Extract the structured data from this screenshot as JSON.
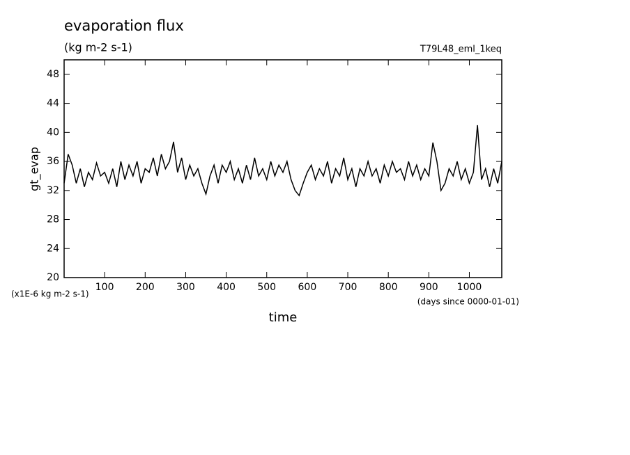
{
  "chart_data": {
    "type": "line",
    "title": "evaporation flux",
    "subtitle": "(kg m-2 s-1)",
    "run_label": "T79L48_eml_1keq",
    "y_label": "gt_evap",
    "x_label": "time",
    "y_unit": "(x1E-6 kg m-2 s-1)",
    "x_unit": "(days since 0000-01-01)",
    "xlim": [
      0,
      1080
    ],
    "ylim": [
      20,
      50
    ],
    "xticks": [
      100,
      200,
      300,
      400,
      500,
      600,
      700,
      800,
      900,
      1000
    ],
    "yticks": [
      20,
      24,
      28,
      32,
      36,
      40,
      44,
      48
    ],
    "x": [
      0,
      10,
      20,
      30,
      40,
      50,
      60,
      70,
      80,
      90,
      100,
      110,
      120,
      130,
      140,
      150,
      160,
      170,
      180,
      190,
      200,
      210,
      220,
      230,
      240,
      250,
      260,
      270,
      280,
      290,
      300,
      310,
      320,
      330,
      340,
      350,
      360,
      370,
      380,
      390,
      400,
      410,
      420,
      430,
      440,
      450,
      460,
      470,
      480,
      490,
      500,
      510,
      520,
      530,
      540,
      550,
      560,
      570,
      580,
      590,
      600,
      610,
      620,
      630,
      640,
      650,
      660,
      670,
      680,
      690,
      700,
      710,
      720,
      730,
      740,
      750,
      760,
      770,
      780,
      790,
      800,
      810,
      820,
      830,
      840,
      850,
      860,
      870,
      880,
      890,
      900,
      910,
      920,
      930,
      940,
      950,
      960,
      970,
      980,
      990,
      1000,
      1010,
      1020,
      1030,
      1040,
      1050,
      1060,
      1070,
      1080
    ],
    "series": [
      {
        "color": "#000000",
        "values": [
          33,
          37,
          35.5,
          33,
          35,
          32.5,
          34.5,
          33.5,
          35.8,
          34,
          34.5,
          33,
          35,
          32.5,
          36,
          33.5,
          35.5,
          34,
          36,
          33,
          35,
          34.5,
          36.5,
          34,
          37,
          35,
          36,
          38.7,
          34.5,
          36.5,
          33.5,
          35.5,
          34,
          35,
          33,
          31.5,
          34,
          35.5,
          33,
          35.5,
          34.5,
          36,
          33.5,
          35,
          33,
          35.5,
          33.5,
          36.5,
          34,
          35,
          33.5,
          36,
          34,
          35.5,
          34.5,
          36,
          33.5,
          32,
          31.3,
          33,
          34.5,
          35.5,
          33.5,
          35,
          34,
          36,
          33,
          35,
          34,
          36.5,
          33.5,
          35,
          32.5,
          35,
          34,
          36,
          34,
          35,
          33,
          35.5,
          34,
          36,
          34.5,
          35,
          33.5,
          36,
          34,
          35.5,
          33.5,
          35,
          34,
          38.6,
          36,
          32,
          33,
          35,
          34,
          36,
          33.5,
          35,
          33,
          34.5,
          41,
          33.5,
          35,
          32.5,
          35,
          33,
          36
        ]
      }
    ]
  }
}
